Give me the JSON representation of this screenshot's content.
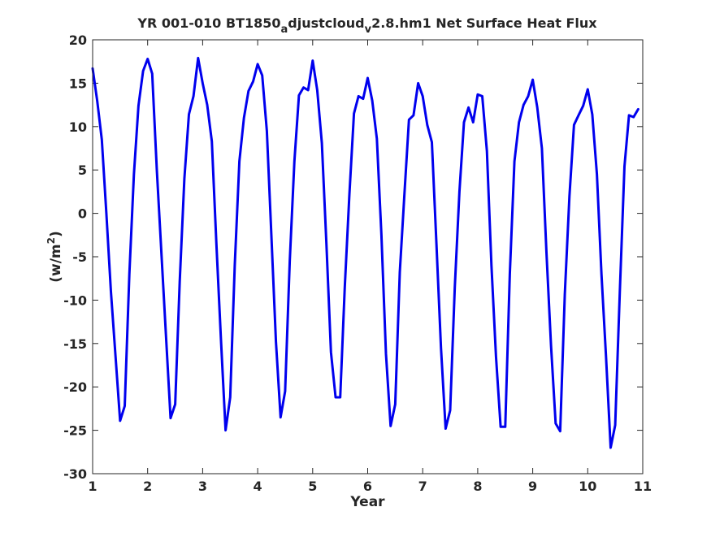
{
  "chart_data": {
    "type": "line",
    "title": {
      "part1": "YR 001-010 BT1850",
      "sub1": "a",
      "part2": "djustcloud",
      "sub2": "v",
      "part3": "2.8.hm1 Net Surface Heat Flux"
    },
    "xlabel": "Year",
    "ylabel": {
      "text": "(w/m",
      "sup": "2",
      "close": ")"
    },
    "xlim": [
      1,
      11
    ],
    "ylim": [
      -30,
      20
    ],
    "xticks": [
      "1",
      "2",
      "3",
      "4",
      "5",
      "6",
      "7",
      "8",
      "9",
      "10",
      "11"
    ],
    "yticks": [
      "20",
      "15",
      "10",
      "5",
      "0",
      "-5",
      "-10",
      "-15",
      "-20",
      "-25",
      "-30"
    ],
    "grid": false,
    "line_color": "#0000ee",
    "series": [
      {
        "x": [
          1.0,
          1.083,
          1.167,
          1.25,
          1.333,
          1.417,
          1.5,
          1.583,
          1.667,
          1.75,
          1.833,
          1.917,
          2.0,
          2.083,
          2.167,
          2.25,
          2.333,
          2.417,
          2.5,
          2.583,
          2.667,
          2.75,
          2.833,
          2.917,
          3.0,
          3.083,
          3.167,
          3.25,
          3.333,
          3.417,
          3.5,
          3.583,
          3.667,
          3.75,
          3.833,
          3.917,
          4.0,
          4.083,
          4.167,
          4.25,
          4.333,
          4.417,
          4.5,
          4.583,
          4.667,
          4.75,
          4.833,
          4.917,
          5.0,
          5.083,
          5.167,
          5.25,
          5.333,
          5.417,
          5.5,
          5.583,
          5.667,
          5.75,
          5.833,
          5.917,
          6.0,
          6.083,
          6.167,
          6.25,
          6.333,
          6.417,
          6.5,
          6.583,
          6.667,
          6.75,
          6.833,
          6.917,
          7.0,
          7.083,
          7.167,
          7.25,
          7.333,
          7.417,
          7.5,
          7.583,
          7.667,
          7.75,
          7.833,
          7.917,
          8.0,
          8.083,
          8.167,
          8.25,
          8.333,
          8.417,
          8.5,
          8.583,
          8.667,
          8.75,
          8.833,
          8.917,
          9.0,
          9.083,
          9.167,
          9.25,
          9.333,
          9.417,
          9.5,
          9.583,
          9.667,
          9.75,
          9.833,
          9.917,
          10.0,
          10.083,
          10.167,
          10.25,
          10.333,
          10.417,
          10.5,
          10.583,
          10.667,
          10.75,
          10.833,
          10.917,
          11.0
        ],
        "y": [
          16.7,
          13.0,
          8.5,
          0.0,
          -9.0,
          -16.5,
          -23.9,
          -22.2,
          -7.0,
          4.5,
          12.4,
          16.4,
          17.8,
          16.1,
          5.0,
          -4.5,
          -14.0,
          -23.6,
          -22.0,
          -7.8,
          4.0,
          11.4,
          13.5,
          17.9,
          15.0,
          12.5,
          8.3,
          -3.5,
          -14.5,
          -25.0,
          -21.2,
          -6.0,
          6.0,
          11.0,
          14.1,
          15.2,
          17.2,
          15.9,
          9.5,
          -2.6,
          -14.8,
          -23.5,
          -20.5,
          -5.5,
          6.0,
          13.6,
          14.5,
          14.2,
          17.6,
          14.2,
          8.1,
          -3.5,
          -16.0,
          -21.2,
          -21.2,
          -8.5,
          2.2,
          11.5,
          13.5,
          13.2,
          15.6,
          13.0,
          8.6,
          -2.5,
          -16.2,
          -24.5,
          -22.0,
          -6.8,
          2.2,
          10.8,
          11.3,
          15.0,
          13.5,
          10.2,
          8.2,
          -3.5,
          -15.5,
          -24.8,
          -22.7,
          -8.5,
          2.5,
          10.5,
          12.2,
          10.5,
          13.7,
          13.5,
          7.2,
          -6.0,
          -16.5,
          -24.6,
          -24.6,
          -7.0,
          6.0,
          10.5,
          12.5,
          13.5,
          15.4,
          12.2,
          7.5,
          -4.5,
          -15.2,
          -24.2,
          -25.1,
          -9.3,
          2.0,
          10.2,
          11.3,
          12.4,
          14.3,
          11.4,
          4.5,
          -7.0,
          -16.5,
          -27.0,
          -24.4,
          -9.0,
          5.4,
          11.3,
          11.1,
          12.0,
          null
        ]
      }
    ]
  }
}
